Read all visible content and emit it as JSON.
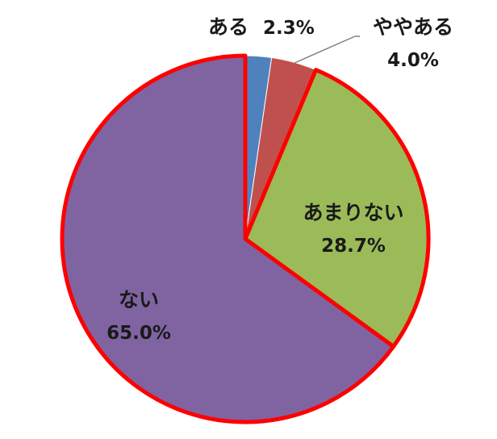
{
  "chart_data": {
    "type": "pie",
    "start_angle": "12 o'clock",
    "direction": "clockwise",
    "slices": [
      {
        "label": "ある",
        "value": 2.3,
        "value_label": "2.3%",
        "color": "#4F81BD",
        "highlighted": false
      },
      {
        "label": "ややある",
        "value": 4.0,
        "value_label": "4.0%",
        "color": "#C0504D",
        "highlighted": false
      },
      {
        "label": "あまりない",
        "value": 28.7,
        "value_label": "28.7%",
        "color": "#9BBB59",
        "highlighted": true
      },
      {
        "label": "ない",
        "value": 65.0,
        "value_label": "65.0%",
        "color": "#8064A2",
        "highlighted": true
      }
    ],
    "highlight_outline_color": "#FF0000"
  }
}
